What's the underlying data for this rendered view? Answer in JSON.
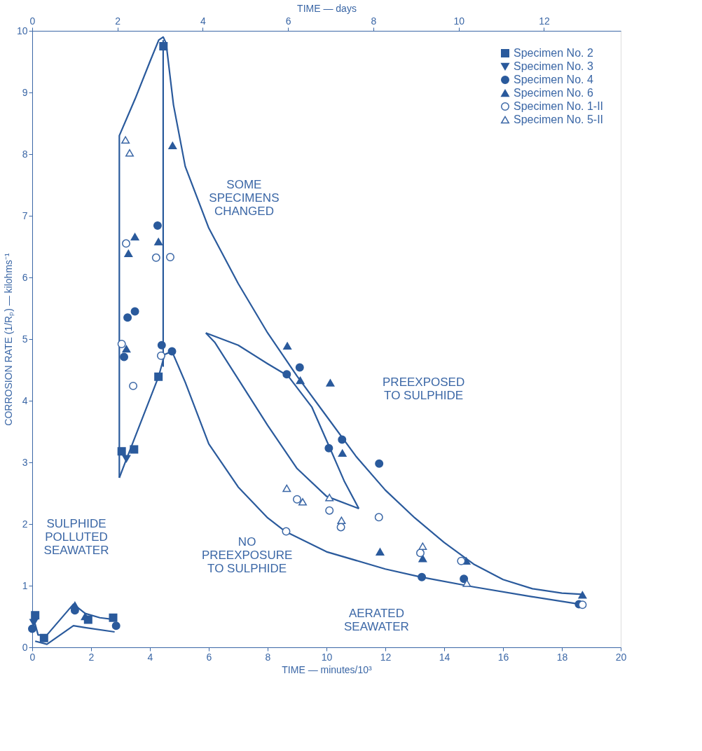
{
  "chart_data": {
    "type": "scatter",
    "xlabel": "TIME — minutes/10³",
    "ylabel": "CORROSION RATE (1/Rₚ) — kilohms⁻¹",
    "x2label": "TIME — days",
    "xlim": [
      0,
      20
    ],
    "ylim": [
      0,
      10
    ],
    "x2lim": [
      0,
      13.8
    ],
    "xticks": [
      0,
      2,
      4,
      6,
      8,
      10,
      12,
      14,
      16,
      18,
      20
    ],
    "yticks": [
      0,
      1,
      2,
      3,
      4,
      5,
      6,
      7,
      8,
      9,
      10
    ],
    "marker": "none",
    "x2ticks": [
      0,
      2,
      4,
      6,
      8,
      10,
      12
    ],
    "grid": false,
    "legend": "top right",
    "series": [
      {
        "name": "Specimen No. 2",
        "color": "#2a5a9c",
        "marker": "square",
        "x": [
          0.1,
          0.4,
          1.9,
          2.75,
          3.04,
          3.46,
          4.29,
          4.46
        ],
        "values": [
          0.52,
          0.15,
          0.45,
          0.48,
          3.18,
          3.21,
          4.39,
          9.75
        ]
      },
      {
        "name": "Specimen No. 3",
        "color": "#2a5a9c",
        "marker": "triangle-down",
        "x": [
          0.05,
          3.2
        ],
        "values": [
          0.4,
          3.06
        ]
      },
      {
        "name": "Specimen No. 4",
        "color": "#2a5a9c",
        "marker": "circle",
        "x": [
          0.0,
          1.45,
          2.85,
          3.12,
          3.24,
          3.49,
          4.26,
          4.4,
          4.75,
          8.65,
          9.09,
          10.08,
          10.53,
          11.79,
          13.24,
          14.67,
          18.58
        ],
        "values": [
          0.3,
          0.6,
          0.35,
          4.71,
          5.35,
          5.45,
          6.84,
          4.9,
          4.8,
          4.43,
          4.54,
          3.23,
          3.37,
          2.98,
          1.14,
          1.11,
          0.7
        ]
      },
      {
        "name": "Specimen No. 6",
        "color": "#2a5a9c",
        "marker": "triangle",
        "x": [
          1.45,
          1.8,
          3.2,
          3.27,
          3.49,
          4.29,
          4.77,
          8.67,
          9.11,
          10.13,
          10.54,
          11.82,
          13.27,
          14.75,
          18.7
        ],
        "values": [
          0.68,
          0.5,
          4.84,
          6.39,
          6.66,
          6.58,
          8.14,
          4.89,
          4.33,
          4.29,
          3.15,
          1.55,
          1.44,
          1.4,
          0.85
        ]
      },
      {
        "name": "Specimen No. 1-II",
        "color": "#ffffff",
        "marker": "circle",
        "x": [
          3.04,
          3.19,
          3.43,
          4.21,
          4.38,
          4.69,
          8.63,
          9.0,
          10.1,
          10.49,
          11.78,
          13.19,
          14.58,
          18.7
        ],
        "values": [
          4.92,
          6.55,
          4.24,
          6.32,
          4.73,
          6.33,
          1.88,
          2.4,
          2.22,
          1.95,
          2.11,
          1.53,
          1.4,
          0.69
        ]
      },
      {
        "name": "Specimen No. 5-II",
        "color": "#ffffff",
        "marker": "triangle",
        "x": [
          3.17,
          3.31,
          8.65,
          9.19,
          10.1,
          10.51,
          13.27,
          14.77
        ],
        "values": [
          8.23,
          8.02,
          2.58,
          2.36,
          2.43,
          2.06,
          1.64,
          1.04
        ]
      },
      {
        "type": "line",
        "color": "#2a5a9c",
        "marker": "none",
        "x": [
          2.96,
          2.96,
          3.5,
          4.0,
          4.3,
          4.45,
          4.55,
          4.8,
          5.2,
          6,
          7,
          8,
          9,
          10,
          11,
          12,
          13,
          14,
          15,
          16,
          17,
          18,
          18.7
        ],
        "values": [
          2.75,
          8.3,
          8.9,
          9.5,
          9.85,
          9.9,
          9.8,
          8.8,
          7.8,
          6.8,
          5.9,
          5.1,
          4.4,
          3.75,
          3.1,
          2.55,
          2.1,
          1.7,
          1.35,
          1.1,
          0.95,
          0.88,
          0.86
        ]
      },
      {
        "type": "line",
        "color": "#2a5a9c",
        "marker": "none",
        "x": [
          4.45,
          4.45
        ],
        "values": [
          9.85,
          4.55
        ]
      },
      {
        "type": "line",
        "color": "#2a5a9c",
        "marker": "none",
        "x": [
          2.96,
          3.2,
          4.3,
          4.5,
          4.75,
          5.2,
          6,
          7,
          8,
          8.6,
          10,
          12,
          13.2,
          15,
          17,
          18.6
        ],
        "values": [
          2.75,
          3.05,
          4.4,
          4.75,
          4.8,
          4.3,
          3.3,
          2.6,
          2.1,
          1.88,
          1.55,
          1.27,
          1.14,
          0.98,
          0.82,
          0.7
        ]
      },
      {
        "type": "line",
        "color": "#2a5a9c",
        "x": [
          5.9,
          7,
          8,
          8.7,
          9.5,
          10.1,
          10.6,
          11.1
        ],
        "values": [
          5.1,
          4.9,
          4.6,
          4.4,
          3.9,
          3.25,
          2.7,
          2.25
        ]
      },
      {
        "type": "line",
        "color": "#2a5a9c",
        "x": [
          5.9,
          6.2,
          7,
          8,
          9,
          10,
          11.1
        ],
        "values": [
          5.1,
          4.95,
          4.35,
          3.6,
          2.9,
          2.45,
          2.25
        ]
      },
      {
        "type": "line",
        "color": "#2a5a9c",
        "marker": "none",
        "x": [
          0,
          0.2,
          0.5,
          1.4,
          1.8,
          2.3,
          2.8
        ],
        "values": [
          0.55,
          0.2,
          0.2,
          0.7,
          0.55,
          0.48,
          0.45
        ]
      },
      {
        "type": "line",
        "color": "#2a5a9c",
        "marker": "none",
        "x": [
          0.1,
          0.5,
          1.4,
          1.8,
          2.8
        ],
        "values": [
          0.1,
          0.05,
          0.35,
          0.32,
          0.25
        ]
      }
    ],
    "annotations": [
      "SOME\nSPECIMENS\nCHANGED",
      "PREEXPOSED\nTO SULPHIDE",
      "NO\nPREEXPOSURE\nTO SULPHIDE",
      "SULPHIDE\nPOLLUTED\nSEAWATER",
      "AERATED\nSEAWATER"
    ]
  }
}
